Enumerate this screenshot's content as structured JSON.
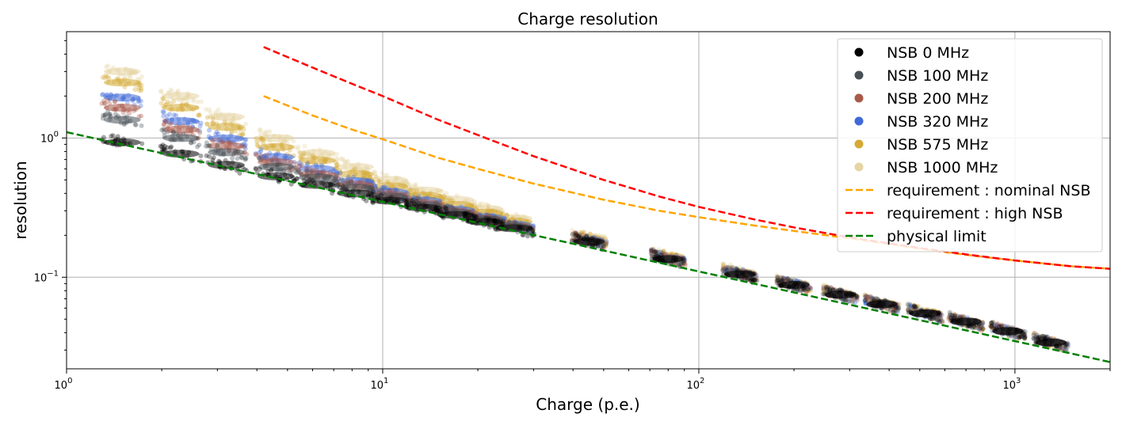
{
  "chart_data": {
    "type": "scatter",
    "title": "Charge resolution",
    "xlabel": "Charge (p.e.)",
    "ylabel": "resolution",
    "xscale": "log",
    "yscale": "log",
    "xlim": [
      1.0,
      2000
    ],
    "ylim": [
      0.022,
      5.8
    ],
    "grid": true,
    "legend_position": "top-right",
    "x_ticks": [
      {
        "value": 1,
        "base": "10",
        "exp": "0"
      },
      {
        "value": 10,
        "base": "10",
        "exp": "1"
      },
      {
        "value": 100,
        "base": "10",
        "exp": "2"
      },
      {
        "value": 1000,
        "base": "10",
        "exp": "3"
      }
    ],
    "y_ticks": [
      {
        "value": 1,
        "base": "10",
        "exp": "0"
      },
      {
        "value": 0.1,
        "base": "10",
        "exp": "−1"
      }
    ],
    "charge_points": [
      1.5,
      2.3,
      3.2,
      4.6,
      6.2,
      8.2,
      10.5,
      13.5,
      17,
      21,
      26,
      45,
      80,
      135,
      200,
      280,
      380,
      520,
      700,
      950,
      1300
    ],
    "series": [
      {
        "name": "NSB 0 MHz",
        "color": "#000000",
        "values": [
          0.93,
          0.77,
          0.64,
          0.53,
          0.46,
          0.4,
          0.355,
          0.315,
          0.28,
          0.25,
          0.225,
          0.18,
          0.135,
          0.105,
          0.088,
          0.075,
          0.064,
          0.055,
          0.048,
          0.041,
          0.034
        ]
      },
      {
        "name": "NSB 100 MHz",
        "color": "#475057",
        "values": [
          1.35,
          1.0,
          0.79,
          0.62,
          0.52,
          0.44,
          0.38,
          0.33,
          0.29,
          0.26,
          0.23,
          0.18,
          0.135,
          0.105,
          0.088,
          0.075,
          0.064,
          0.055,
          0.048,
          0.041,
          0.034
        ]
      },
      {
        "name": "NSB 200 MHz",
        "color": "#a85a4a",
        "values": [
          1.65,
          1.15,
          0.88,
          0.67,
          0.55,
          0.46,
          0.39,
          0.34,
          0.295,
          0.262,
          0.232,
          0.182,
          0.136,
          0.106,
          0.088,
          0.075,
          0.064,
          0.055,
          0.048,
          0.041,
          0.034
        ]
      },
      {
        "name": "NSB 320 MHz",
        "color": "#3f6ad8",
        "values": [
          1.95,
          1.32,
          0.99,
          0.73,
          0.6,
          0.49,
          0.41,
          0.355,
          0.305,
          0.27,
          0.238,
          0.185,
          0.137,
          0.107,
          0.089,
          0.075,
          0.064,
          0.055,
          0.048,
          0.041,
          0.034
        ]
      },
      {
        "name": "NSB 575 MHz",
        "color": "#d4a934",
        "values": [
          2.5,
          1.65,
          1.2,
          0.86,
          0.69,
          0.55,
          0.45,
          0.385,
          0.33,
          0.29,
          0.25,
          0.19,
          0.14,
          0.108,
          0.09,
          0.076,
          0.065,
          0.056,
          0.048,
          0.041,
          0.034
        ]
      },
      {
        "name": "NSB 1000 MHz",
        "color": "#e6d4a2",
        "values": [
          3.0,
          2.0,
          1.42,
          1.0,
          0.78,
          0.62,
          0.5,
          0.42,
          0.36,
          0.31,
          0.265,
          0.195,
          0.142,
          0.109,
          0.09,
          0.076,
          0.065,
          0.056,
          0.048,
          0.041,
          0.034
        ]
      }
    ],
    "lines": [
      {
        "name": "requirement : nominal NSB",
        "color": "#ffa500",
        "style": "dashed",
        "x": [
          4.2,
          6,
          8,
          10,
          15,
          20,
          30,
          50,
          75,
          100,
          150,
          200,
          300,
          500,
          750,
          1000,
          1500,
          2000
        ],
        "y": [
          2.0,
          1.45,
          1.15,
          0.98,
          0.72,
          0.6,
          0.47,
          0.36,
          0.3,
          0.27,
          0.235,
          0.215,
          0.19,
          0.16,
          0.142,
          0.132,
          0.12,
          0.115
        ]
      },
      {
        "name": "requirement : high NSB",
        "color": "#ff0000",
        "style": "dashed",
        "x": [
          4.2,
          6,
          8,
          10,
          15,
          20,
          30,
          50,
          75,
          100,
          150,
          200,
          300,
          500,
          750,
          1000,
          1500,
          2000
        ],
        "y": [
          4.5,
          3.2,
          2.45,
          2.0,
          1.35,
          1.05,
          0.74,
          0.5,
          0.38,
          0.32,
          0.26,
          0.228,
          0.193,
          0.162,
          0.143,
          0.132,
          0.12,
          0.115
        ]
      },
      {
        "name": "physical limit",
        "color": "#008000",
        "style": "dashed",
        "x": [
          1.0,
          2000
        ],
        "y": [
          1.1,
          0.0246
        ]
      }
    ]
  }
}
